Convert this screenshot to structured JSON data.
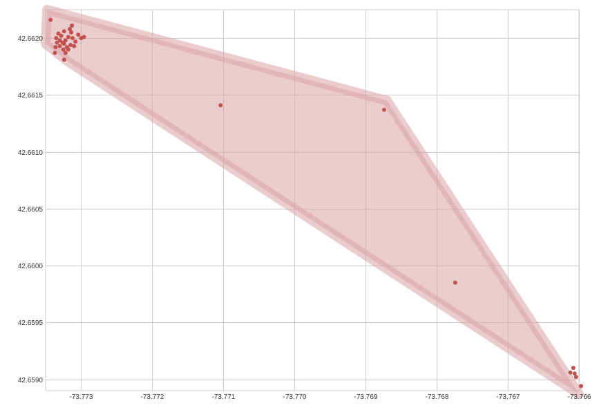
{
  "chart_data": {
    "type": "scatter",
    "title": "",
    "xlabel": "",
    "ylabel": "",
    "xlim": [
      -73.7735,
      -73.766
    ],
    "ylim": [
      42.6589,
      42.66225
    ],
    "grid": true,
    "x_ticks": [
      -73.773,
      -73.772,
      -73.771,
      -73.77,
      -73.769,
      -73.768,
      -73.767,
      -73.766
    ],
    "x_tick_labels": [
      "-73.773",
      "-73.772",
      "-73.771",
      "-73.770",
      "-73.769",
      "-73.768",
      "-73.767",
      "-73.766"
    ],
    "y_ticks": [
      42.659,
      42.6595,
      42.66,
      42.6605,
      42.661,
      42.6615,
      42.662
    ],
    "y_tick_labels": [
      "42.6590",
      "42.6595",
      "42.6600",
      "42.6605",
      "42.6610",
      "42.6615",
      "42.6620"
    ],
    "series": [
      {
        "points": [
          {
            "x": -73.77343,
            "y": 42.66216
          },
          {
            "x": -73.77332,
            "y": 42.66204
          },
          {
            "x": -73.77328,
            "y": 42.66202
          },
          {
            "x": -73.77335,
            "y": 42.662
          },
          {
            "x": -73.7733,
            "y": 42.66198
          },
          {
            "x": -73.77326,
            "y": 42.66196
          },
          {
            "x": -73.77322,
            "y": 42.66198
          },
          {
            "x": -73.77318,
            "y": 42.66201
          },
          {
            "x": -73.77314,
            "y": 42.66205
          },
          {
            "x": -73.77312,
            "y": 42.662
          },
          {
            "x": -73.77308,
            "y": 42.66197
          },
          {
            "x": -73.77304,
            "y": 42.66203
          },
          {
            "x": -73.77315,
            "y": 42.66194
          },
          {
            "x": -73.7732,
            "y": 42.66192
          },
          {
            "x": -73.77325,
            "y": 42.6619
          },
          {
            "x": -73.7733,
            "y": 42.66193
          },
          {
            "x": -73.77334,
            "y": 42.66196
          },
          {
            "x": -73.77316,
            "y": 42.66208
          },
          {
            "x": -73.7731,
            "y": 42.66193
          },
          {
            "x": -73.773,
            "y": 42.662
          },
          {
            "x": -73.77296,
            "y": 42.66201
          },
          {
            "x": -73.77318,
            "y": 42.6619
          },
          {
            "x": -73.77322,
            "y": 42.66187
          },
          {
            "x": -73.77336,
            "y": 42.66192
          },
          {
            "x": -73.77313,
            "y": 42.66211
          },
          {
            "x": -73.77324,
            "y": 42.66206
          },
          {
            "x": -73.77337,
            "y": 42.66187
          },
          {
            "x": -73.77324,
            "y": 42.66195
          },
          {
            "x": -73.77324,
            "y": 42.66181
          },
          {
            "x": -73.77104,
            "y": 42.66141
          },
          {
            "x": -73.76874,
            "y": 42.66137
          },
          {
            "x": -73.76774,
            "y": 42.65985
          },
          {
            "x": -73.76608,
            "y": 42.6591
          },
          {
            "x": -73.76612,
            "y": 42.65906
          },
          {
            "x": -73.76606,
            "y": 42.65905
          },
          {
            "x": -73.76604,
            "y": 42.65902
          },
          {
            "x": -73.76597,
            "y": 42.65894
          }
        ]
      }
    ],
    "hull": {
      "points": [
        {
          "x": -73.77348,
          "y": 42.66225
        },
        {
          "x": -73.7687,
          "y": 42.66145
        },
        {
          "x": -73.766,
          "y": 42.65887
        },
        {
          "x": -73.7732,
          "y": 42.6618
        },
        {
          "x": -73.7735,
          "y": 42.66195
        }
      ]
    },
    "colors": {
      "marker": "#c1514d",
      "hull_fill": "#d9a3a7",
      "grid": "#cccccc",
      "axis_text": "#333333"
    }
  }
}
